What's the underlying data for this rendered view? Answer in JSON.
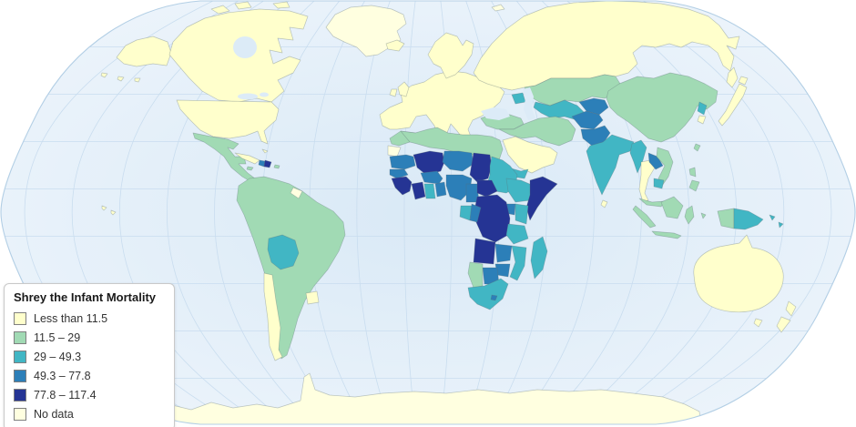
{
  "legend": {
    "title": "Shrey the Infant Mortality",
    "items": [
      {
        "label": "Less than 11.5",
        "category": "c1"
      },
      {
        "label": "11.5 – 29",
        "category": "c2"
      },
      {
        "label": "29 – 49.3",
        "category": "c3"
      },
      {
        "label": "49.3 – 77.8",
        "category": "c4"
      },
      {
        "label": "77.8 – 117.4",
        "category": "c5"
      },
      {
        "label": "No data",
        "category": "nodata"
      }
    ]
  },
  "palette": {
    "c1": "#ffffcc",
    "c2": "#a1dab4",
    "c3": "#41b6c4",
    "c4": "#2c7fb8",
    "c5": "#253494",
    "nodata": "#ffffe0"
  },
  "map": {
    "ocean_center": "#d9e9f6",
    "ocean_edge": "#f0f6fc",
    "water": "#dcebf7",
    "graticule": "#c9ddef",
    "outline": "#b3cfe5",
    "regions": {
      "alaska": "c1",
      "aleutians": "c1",
      "canada": "c1",
      "arctic-islands-1": "c1",
      "arctic-islands-2": "c1",
      "arctic-islands-3": "c1",
      "greenland": "nodata",
      "iceland": "c1",
      "usa": "c1",
      "hawaii": "c1",
      "mexico-central-america": "c2",
      "cuba": "c1",
      "bahamas": "c1",
      "jamaica": "c2",
      "haiti": "c4",
      "dominican-republic": "c5",
      "puerto-rico": "c2",
      "south-america": "c2",
      "french-guiana": "nodata",
      "bolivia": "c3",
      "chile": "c1",
      "uruguay": "c1",
      "europe": "c1",
      "uk": "c1",
      "ireland": "c1",
      "scandinavia": "c1",
      "svalbard": "nodata",
      "novaya-zemlya": "c1",
      "moldova": "c2",
      "albania": "c2",
      "russia": "c1",
      "sakhalin": "c1",
      "kazakhstan": "c2",
      "azerbaijan": "c3",
      "uzbekistan-turkmenistan": "c3",
      "kyrgyzstan-tajikistan": "c4",
      "turkey": "c2",
      "iran-iraq-syria": "c2",
      "saudi-arabia": "c1",
      "yemen": "c3",
      "afghanistan": "c4",
      "pakistan": "c4",
      "india": "c3",
      "sri-lanka": "c1",
      "myanmar": "c3",
      "thailand": "c1",
      "laos": "c4",
      "vietnam": "c2",
      "cambodia": "c3",
      "china-mongolia": "c2",
      "north-korea": "c3",
      "south-korea": "c1",
      "japan": "c1",
      "hokkaido": "c1",
      "taiwan": "c2",
      "philippines-north": "c2",
      "philippines-south": "c2",
      "malaysia": "c2",
      "sumatra": "c2",
      "java": "c2",
      "borneo": "c2",
      "sulawesi": "c2",
      "maluku": "c2",
      "west-papua": "c2",
      "papua-new-guinea": "c3",
      "png-islands-1": "c3",
      "png-islands-2": "c3",
      "australia": "c1",
      "tasmania": "c1",
      "new-zealand-north": "c1",
      "new-zealand-south": "c1",
      "antarctica": "nodata",
      "morocco": "c2",
      "western-sahara": "nodata",
      "north-africa": "c2",
      "mauritania": "c4",
      "mali": "c5",
      "niger": "c4",
      "chad": "c5",
      "sudan": "c3",
      "senegal": "c4",
      "guinea": "c5",
      "cote-divoire": "c5",
      "ghana": "c3",
      "burkina-faso": "c4",
      "togo-benin": "c4",
      "nigeria": "c4",
      "cameroon": "c4",
      "central-african-republic": "c5",
      "ethiopia": "c3",
      "somalia": "c5",
      "kenya": "c3",
      "uganda": "c4",
      "drc": "c5",
      "gabon": "c3",
      "congo": "c4",
      "angola": "c5",
      "zambia": "c4",
      "tanzania": "c3",
      "mozambique": "c3",
      "zimbabwe": "c4",
      "botswana": "c4",
      "namibia": "c2",
      "south-africa": "c3",
      "lesotho": "c4",
      "madagascar": "c3"
    }
  }
}
